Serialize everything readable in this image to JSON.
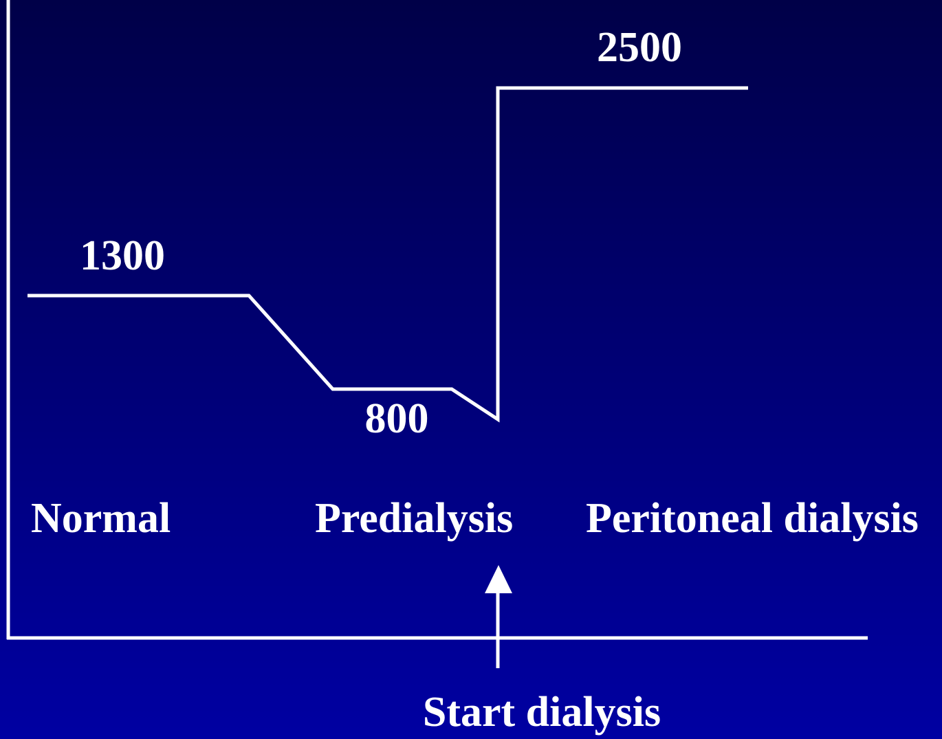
{
  "levels": [
    "2500",
    "1300",
    "800"
  ],
  "phases": [
    "Normal",
    "Predialysis",
    "Peritoneal dialysis"
  ],
  "annotation": "Start dialysis"
}
